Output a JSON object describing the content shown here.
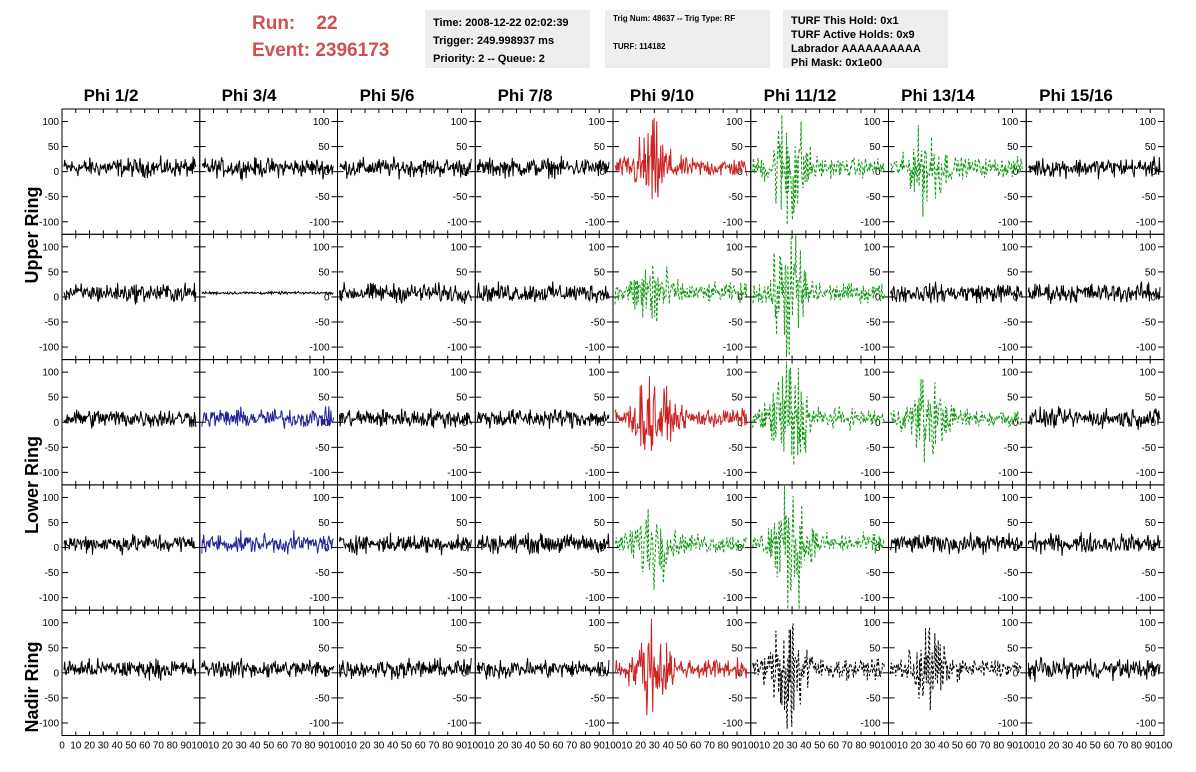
{
  "header": {
    "run_label": "Run:",
    "run_value": "22",
    "event_label": "Event:",
    "event_value": "2396173",
    "run_color": "#d0504f"
  },
  "time_box": {
    "time": "Time: 2008-12-22 02:02:39",
    "trigger": "Trigger: 249.998937 ms",
    "priority": "Priority: 2 -- Queue: 2"
  },
  "trig_box": {
    "trig": "Trig Num: 48637 -- Trig Type: RF",
    "turf": "TURF: 114182"
  },
  "turf_box": {
    "this_hold": "TURF This Hold: 0x1",
    "active_holds": "TURF Active Holds: 0x9",
    "labrador": "Labrador AAAAAAAAAA",
    "phi_mask": "Phi Mask: 0x1e00"
  },
  "phi_headers": [
    "Phi 1/2",
    "Phi 3/4",
    "Phi 5/6",
    "Phi 7/8",
    "Phi 9/10",
    "Phi 11/12",
    "Phi 13/14",
    "Phi 15/16"
  ],
  "ring_labels": {
    "upper": "Upper Ring",
    "lower": "Lower Ring",
    "nadir": "Nadir Ring"
  },
  "y_ticks": [
    "100",
    "50",
    "0",
    "-50",
    "-100"
  ],
  "x_ticks": [
    "0",
    "10",
    "20",
    "30",
    "40",
    "50",
    "60",
    "70",
    "80",
    "90",
    "100"
  ],
  "trace_colors": {
    "k": "#000000",
    "r": "#cc2222",
    "g": "#119911",
    "b": "#22229a"
  },
  "trace_styles": [
    [
      "k",
      "k",
      "k",
      "k",
      "r",
      "g",
      "g",
      "k"
    ],
    [
      "k",
      "k",
      "k",
      "k",
      "g",
      "g",
      "k",
      "k"
    ],
    [
      "k",
      "b",
      "k",
      "k",
      "r",
      "g",
      "g",
      "k"
    ],
    [
      "k",
      "b",
      "k",
      "k",
      "g",
      "g",
      "k",
      "k"
    ],
    [
      "k",
      "k",
      "k",
      "k",
      "r",
      "k",
      "k",
      "k"
    ]
  ],
  "trace_dashed": [
    [
      false,
      false,
      false,
      false,
      false,
      true,
      true,
      false
    ],
    [
      false,
      false,
      false,
      false,
      true,
      true,
      false,
      false
    ],
    [
      false,
      false,
      false,
      false,
      false,
      true,
      true,
      false
    ],
    [
      false,
      false,
      false,
      false,
      true,
      true,
      false,
      false
    ],
    [
      false,
      false,
      false,
      false,
      false,
      true,
      true,
      false
    ]
  ]
}
